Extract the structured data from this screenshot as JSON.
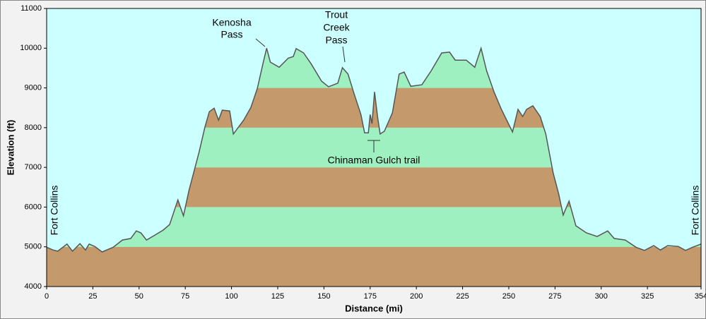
{
  "chart_data": {
    "type": "area",
    "y_label": "Elevation (ft)",
    "x_label": "Distance   (mi)",
    "xlim": [
      0,
      354
    ],
    "xticks": [
      0,
      25,
      50,
      75,
      100,
      125,
      150,
      175,
      200,
      225,
      250,
      275,
      300,
      325,
      354
    ],
    "ylim": [
      4000,
      11000
    ],
    "yticks": [
      4000,
      5000,
      6000,
      7000,
      8000,
      9000,
      10000,
      11000
    ],
    "band_colors": [
      "#c49a6c",
      "#9ff0c0"
    ],
    "background": "#ccffff",
    "line_color": "#555555",
    "x": [
      0,
      3.4,
      6,
      11,
      14,
      18,
      21,
      23,
      26,
      30,
      36,
      41,
      45.5,
      48.5,
      51,
      54,
      58,
      63,
      66.5,
      71,
      74,
      77,
      80,
      82.5,
      85.6,
      88,
      90.6,
      93,
      95,
      99,
      101,
      106.6,
      110.5,
      114,
      117,
      119,
      121,
      125.8,
      130.7,
      133.4,
      135,
      139,
      143,
      148.7,
      152.5,
      157.5,
      160,
      163,
      166,
      170,
      172,
      174,
      175,
      176,
      177.4,
      179,
      180.4,
      182.7,
      187,
      190.7,
      193.4,
      197,
      203,
      208,
      213.7,
      218,
      221,
      227,
      231.6,
      235,
      238,
      242,
      246,
      252,
      255,
      257.5,
      259.6,
      263,
      267,
      270,
      274,
      277,
      279.4,
      282.6,
      286.3,
      292,
      297.8,
      303.5,
      307,
      313,
      318.8,
      323.4,
      328.4,
      332,
      336,
      341.7,
      345.6,
      349.4,
      354
    ],
    "values": [
      4990,
      4920,
      4890,
      5070,
      4890,
      5080,
      4920,
      5070,
      5010,
      4870,
      4990,
      5170,
      5210,
      5400,
      5350,
      5170,
      5280,
      5420,
      5560,
      6180,
      5780,
      6420,
      6950,
      7390,
      8010,
      8400,
      8490,
      8190,
      8440,
      8420,
      7840,
      8190,
      8510,
      8990,
      9610,
      10000,
      9650,
      9520,
      9750,
      9790,
      9990,
      9880,
      9610,
      9170,
      9030,
      9120,
      9510,
      9350,
      8900,
      8330,
      7870,
      7870,
      8330,
      8100,
      8900,
      8280,
      7840,
      7910,
      8370,
      9350,
      9400,
      9040,
      9080,
      9430,
      9880,
      9900,
      9700,
      9700,
      9520,
      10000,
      9430,
      8900,
      8460,
      7890,
      8460,
      8280,
      8460,
      8550,
      8280,
      7840,
      6860,
      6330,
      5800,
      6150,
      5530,
      5350,
      5260,
      5400,
      5210,
      5170,
      4990,
      4910,
      5030,
      4920,
      5030,
      5010,
      4910,
      4990,
      5070
    ],
    "annotations": [
      {
        "lines": [
          "Kenosha",
          "Pass"
        ]
      },
      {
        "lines": [
          "Trout",
          "Creek",
          "Pass"
        ]
      },
      {
        "lines": [
          "Chinaman Gulch trail"
        ]
      },
      {
        "lines": [
          "Fort Collins"
        ]
      },
      {
        "lines": [
          "Fort Collins"
        ]
      }
    ]
  }
}
